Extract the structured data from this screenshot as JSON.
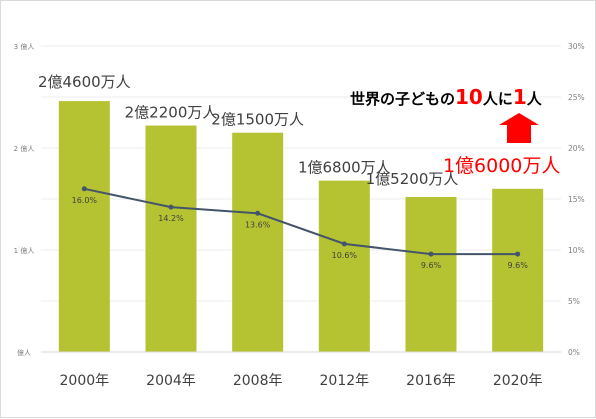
{
  "chart_data": {
    "type": "bar",
    "categories": [
      "2000年",
      "2004年",
      "2008年",
      "2012年",
      "2016年",
      "2020年"
    ],
    "series": [
      {
        "type": "bar",
        "values": [
          2.46,
          2.22,
          2.15,
          1.68,
          1.52,
          1.6
        ],
        "color": "#b5c332"
      },
      {
        "type": "line",
        "axis": "right",
        "values": [
          16.0,
          14.2,
          13.6,
          10.6,
          9.6,
          9.6
        ],
        "color": "#44546a"
      }
    ],
    "bar_labels": [
      "2億4600万人",
      "2億2200万人",
      "2億1500万人",
      "1億6800万人",
      "1億5200万人",
      "1億6000万人"
    ],
    "highlight_label_color": "#ff0000",
    "line_labels": [
      "16.0%",
      "14.2%",
      "13.6%",
      "10.6%",
      "9.6%",
      "9.6%"
    ],
    "y_left": {
      "ylim": [
        0,
        3
      ],
      "ticks": [
        0,
        1,
        2,
        3
      ],
      "tick_labels": [
        "億人",
        "1 億人",
        "2 億人",
        "3 億人"
      ]
    },
    "y_right": {
      "ylim": [
        0,
        30
      ],
      "ticks": [
        0,
        5,
        10,
        15,
        20,
        25,
        30
      ],
      "tick_labels": [
        "0%",
        "5%",
        "10%",
        "15%",
        "20%",
        "25%",
        "30%"
      ]
    },
    "annotation": {
      "parts": [
        "世界の子どもの",
        "10",
        "人に",
        "1",
        "人"
      ],
      "highlight_color": "#ff0000",
      "arrow_color": "#ff0000"
    },
    "grid": true
  }
}
